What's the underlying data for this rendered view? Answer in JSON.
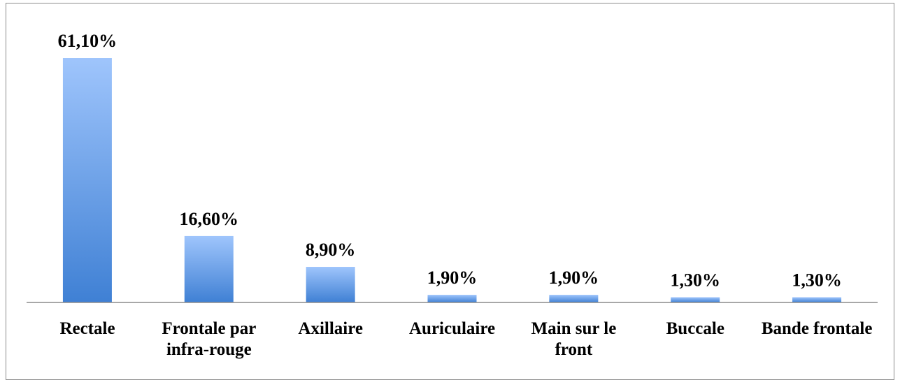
{
  "chart_data": {
    "type": "bar",
    "categories": [
      "Rectale",
      "Frontale par infra-rouge",
      "Axillaire",
      "Auriculaire",
      "Main sur le front",
      "Buccale",
      "Bande frontale"
    ],
    "values": [
      61.1,
      16.6,
      8.9,
      1.9,
      1.9,
      1.3,
      1.3
    ],
    "value_labels": [
      "61,10%",
      "16,60%",
      "8,90%",
      "1,90%",
      "1,90%",
      "1,30%",
      "1,30%"
    ],
    "color": "#3f80d4"
  }
}
